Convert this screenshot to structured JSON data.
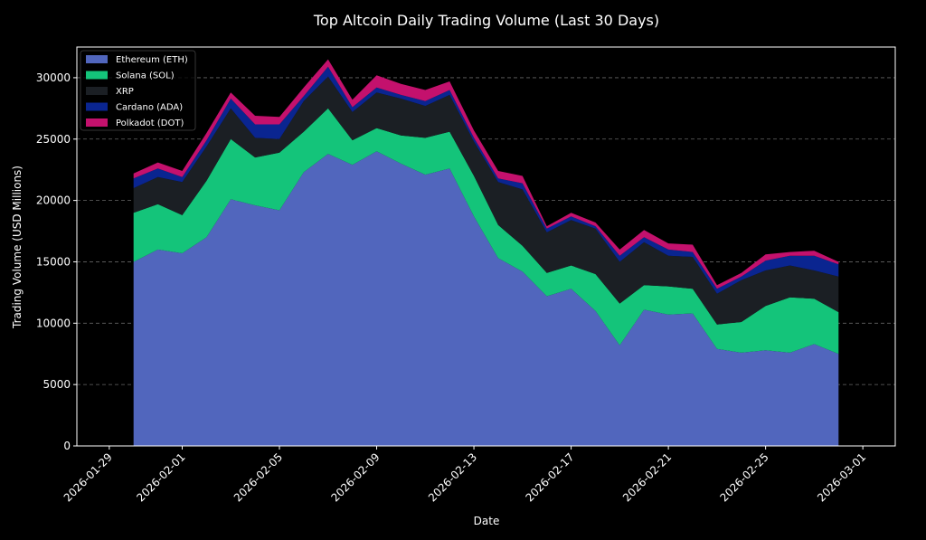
{
  "chart_data": {
    "type": "area",
    "title": "Top Altcoin Daily Trading Volume (Last 30 Days)",
    "xlabel": "Date",
    "ylabel": "Trading Volume (USD Millions)",
    "x": [
      "2026-01-30",
      "2026-01-31",
      "2026-02-01",
      "2026-02-02",
      "2026-02-03",
      "2026-02-04",
      "2026-02-05",
      "2026-02-06",
      "2026-02-07",
      "2026-02-08",
      "2026-02-09",
      "2026-02-10",
      "2026-02-11",
      "2026-02-12",
      "2026-02-13",
      "2026-02-14",
      "2026-02-15",
      "2026-02-16",
      "2026-02-17",
      "2026-02-18",
      "2026-02-19",
      "2026-02-20",
      "2026-02-21",
      "2026-02-22",
      "2026-02-23",
      "2026-02-24",
      "2026-02-25",
      "2026-02-26",
      "2026-02-27",
      "2026-02-28"
    ],
    "x_ticks": [
      "2026-01-29",
      "2026-02-01",
      "2026-02-05",
      "2026-02-09",
      "2026-02-13",
      "2026-02-17",
      "2026-02-21",
      "2026-02-25",
      "2026-03-01"
    ],
    "ylim": [
      0,
      32500
    ],
    "y_ticks": [
      0,
      5000,
      10000,
      15000,
      20000,
      25000,
      30000
    ],
    "grid": "y-dashed",
    "legend_position": "top-left",
    "stacked": true,
    "series": [
      {
        "name": "Ethereum (ETH)",
        "color": "#5166bd",
        "values": [
          15000,
          16000,
          15700,
          17000,
          20100,
          19600,
          19200,
          22300,
          23800,
          22900,
          24000,
          23000,
          22100,
          22600,
          18700,
          15300,
          14200,
          12200,
          12800,
          11000,
          8200,
          11100,
          10700,
          10800,
          7900,
          7600,
          7800,
          7600,
          8300,
          7500
        ]
      },
      {
        "name": "Solana (SOL)",
        "color": "#14c47a",
        "values": [
          4000,
          3700,
          3100,
          4600,
          4900,
          3900,
          4700,
          3300,
          3700,
          2000,
          1900,
          2300,
          3000,
          3000,
          3300,
          2700,
          2100,
          1900,
          1900,
          3000,
          3400,
          2000,
          2300,
          2000,
          2000,
          2500,
          3600,
          4500,
          3700,
          3400
        ]
      },
      {
        "name": "XRP",
        "color": "#1b1f24",
        "values": [
          2000,
          2200,
          2700,
          2800,
          2500,
          1600,
          1100,
          2500,
          2600,
          2300,
          2900,
          3000,
          2600,
          3000,
          2800,
          3500,
          4600,
          3300,
          3700,
          3700,
          3400,
          3500,
          2500,
          2600,
          2500,
          3400,
          2900,
          2600,
          2300,
          2900
        ]
      },
      {
        "name": "Cardano (ADA)",
        "color": "#0a2590",
        "values": [
          800,
          700,
          400,
          500,
          800,
          1100,
          1200,
          400,
          800,
          400,
          400,
          300,
          400,
          400,
          300,
          300,
          500,
          300,
          300,
          200,
          500,
          400,
          500,
          400,
          400,
          300,
          800,
          800,
          1200,
          1000
        ]
      },
      {
        "name": "Polkadot (DOT)",
        "color": "#c4116d",
        "values": [
          400,
          500,
          500,
          600,
          500,
          700,
          600,
          700,
          600,
          600,
          1000,
          900,
          900,
          700,
          600,
          600,
          600,
          200,
          300,
          300,
          500,
          600,
          500,
          600,
          300,
          300,
          500,
          300,
          400,
          200
        ]
      }
    ]
  }
}
